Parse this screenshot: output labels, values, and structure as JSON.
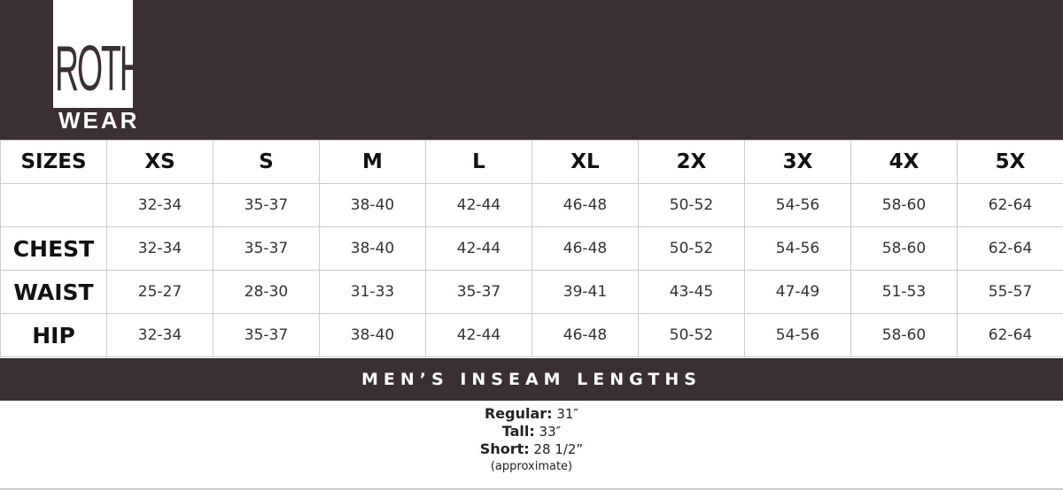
{
  "brand": {
    "logo_top": "ROTH",
    "logo_bottom": "WEAR",
    "color": "#3a3032"
  },
  "table": {
    "header_label": "SIZES",
    "sizes": [
      "XS",
      "S",
      "M",
      "L",
      "XL",
      "2X",
      "3X",
      "4X",
      "5X"
    ],
    "rows": [
      {
        "label": "",
        "values": [
          "32-34",
          "35-37",
          "38-40",
          "42-44",
          "46-48",
          "50-52",
          "54-56",
          "58-60",
          "62-64"
        ]
      },
      {
        "label": "CHEST",
        "values": [
          "32-34",
          "35-37",
          "38-40",
          "42-44",
          "46-48",
          "50-52",
          "54-56",
          "58-60",
          "62-64"
        ]
      },
      {
        "label": "WAIST",
        "values": [
          "25-27",
          "28-30",
          "31-33",
          "35-37",
          "39-41",
          "43-45",
          "47-49",
          "51-53",
          "55-57"
        ]
      },
      {
        "label": "HIP",
        "values": [
          "32-34",
          "35-37",
          "38-40",
          "42-44",
          "46-48",
          "50-52",
          "54-56",
          "58-60",
          "62-64"
        ]
      }
    ]
  },
  "inseam": {
    "title": "MEN’S INSEAM LENGTHS",
    "items": [
      {
        "label": "Regular:",
        "value": "31″"
      },
      {
        "label": "Tall:",
        "value": "33″"
      },
      {
        "label": "Short:",
        "value": "28 1/2”"
      }
    ],
    "note": "(approximate)"
  }
}
